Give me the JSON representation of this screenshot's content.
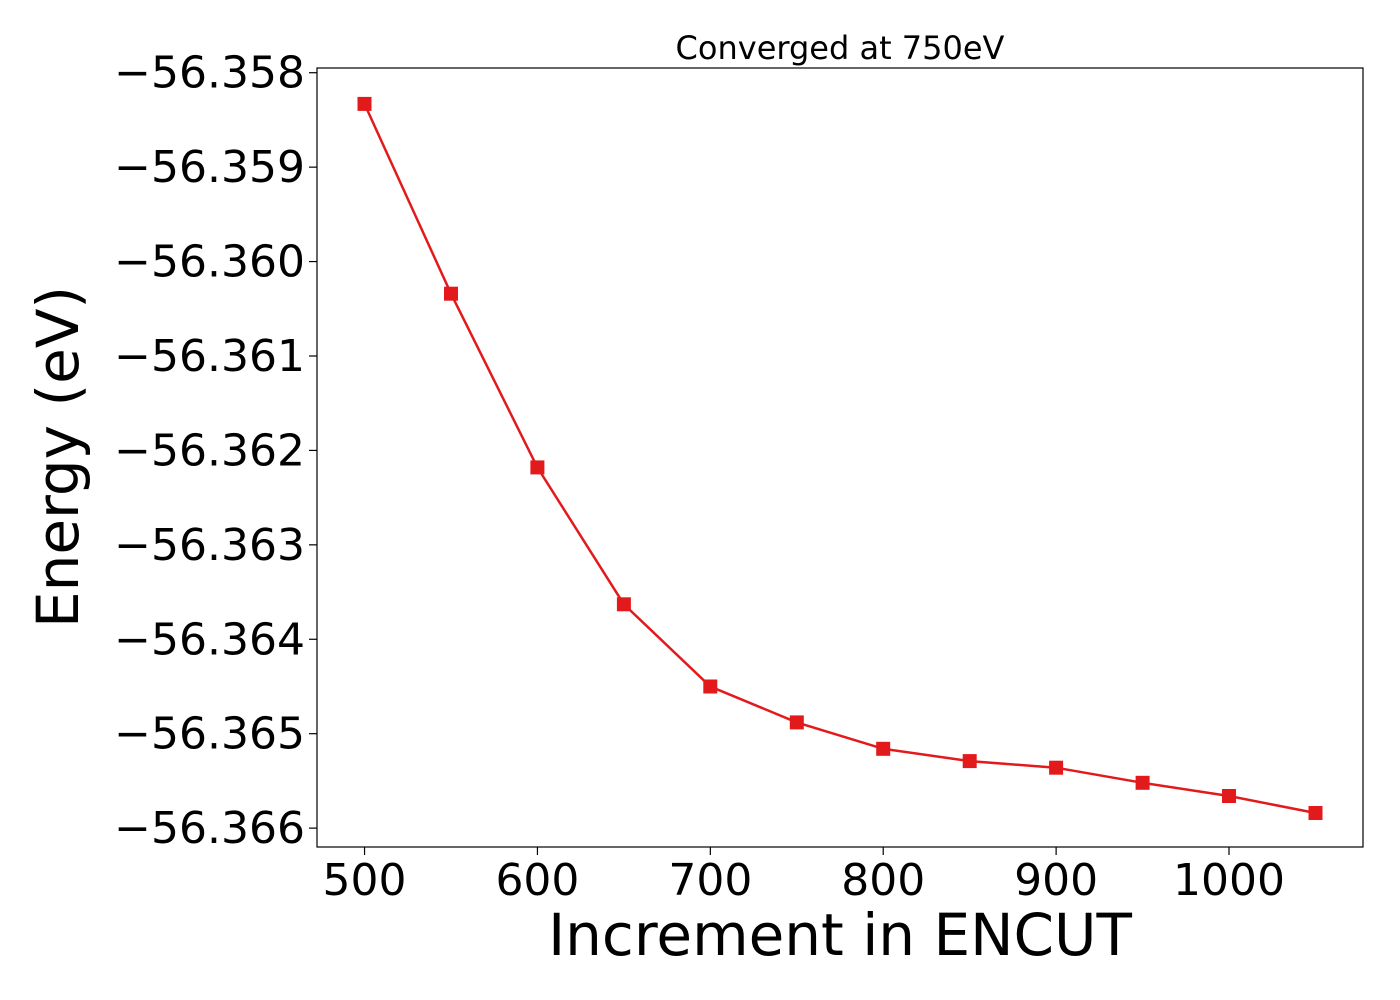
{
  "chart_data": {
    "type": "line",
    "title": "Converged at 750eV",
    "xlabel": "Increment in ENCUT",
    "ylabel": "Energy (eV)",
    "xlim": [
      472.5,
      1077.5
    ],
    "ylim": [
      -56.3662,
      -56.35795
    ],
    "xticks": [
      500,
      600,
      700,
      800,
      900,
      1000
    ],
    "xtick_labels": [
      "500",
      "600",
      "700",
      "800",
      "900",
      "1000"
    ],
    "yticks": [
      -56.358,
      -56.359,
      -56.36,
      -56.361,
      -56.362,
      -56.363,
      -56.364,
      -56.365,
      -56.366
    ],
    "ytick_labels": [
      "−56.358",
      "−56.359",
      "−56.360",
      "−56.361",
      "−56.362",
      "−56.363",
      "−56.364",
      "−56.365",
      "−56.366"
    ],
    "grid": false,
    "series": [
      {
        "color": "#e31a1c",
        "marker": "square",
        "x": [
          500,
          550,
          600,
          650,
          700,
          750,
          800,
          850,
          900,
          950,
          1000,
          1050
        ],
        "y": [
          -56.35833,
          -56.36034,
          -56.36218,
          -56.36363,
          -56.3645,
          -56.36488,
          -56.36516,
          -56.36529,
          -56.36536,
          -56.36552,
          -56.36566,
          -56.36584
        ]
      }
    ]
  }
}
